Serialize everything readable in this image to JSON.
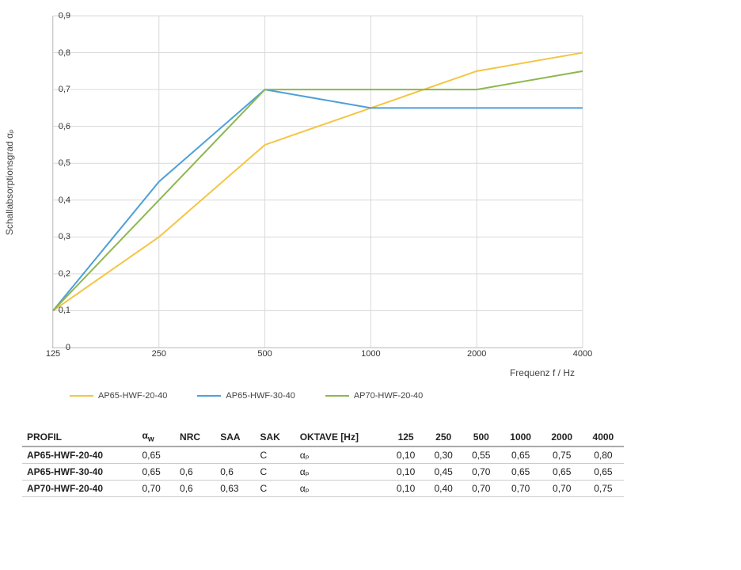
{
  "chart": {
    "type": "line",
    "y_label": "Schallabsorptionsgrad αₚ",
    "x_label": "Frequenz f / Hz",
    "ylim": [
      0,
      0.9
    ],
    "ytick_step": 0.1,
    "y_ticks": [
      "0",
      "0,1",
      "0,2",
      "0,3",
      "0,4",
      "0,5",
      "0,6",
      "0,7",
      "0,8",
      "0,9"
    ],
    "x_categories": [
      "125",
      "250",
      "500",
      "1000",
      "2000",
      "4000"
    ],
    "grid_color": "#d9d9d9",
    "axis_color": "#bbbbbb",
    "background_color": "#ffffff",
    "line_width": 2,
    "label_fontsize": 12,
    "tick_fontsize": 11,
    "series": [
      {
        "name": "AP65-HWF-20-40",
        "color": "#f4c542",
        "values": [
          0.1,
          0.3,
          0.55,
          0.65,
          0.75,
          0.8
        ]
      },
      {
        "name": "AP65-HWF-30-40",
        "color": "#4f9fd8",
        "values": [
          0.1,
          0.45,
          0.7,
          0.65,
          0.65,
          0.65
        ]
      },
      {
        "name": "AP70-HWF-20-40",
        "color": "#8cb84f",
        "values": [
          0.1,
          0.4,
          0.7,
          0.7,
          0.7,
          0.75
        ]
      }
    ]
  },
  "table": {
    "columns": [
      "PROFIL",
      "α_w",
      "NRC",
      "SAA",
      "SAK",
      "OKTAVE [Hz]",
      "125",
      "250",
      "500",
      "1000",
      "2000",
      "4000"
    ],
    "param_label": "αₚ",
    "rows": [
      {
        "profile": "AP65-HWF-20-40",
        "aw": "0,65",
        "nrc": "",
        "saa": "",
        "sak": "C",
        "vals": [
          "0,10",
          "0,30",
          "0,55",
          "0,65",
          "0,75",
          "0,80"
        ]
      },
      {
        "profile": "AP65-HWF-30-40",
        "aw": "0,65",
        "nrc": "0,6",
        "saa": "0,6",
        "sak": "C",
        "vals": [
          "0,10",
          "0,45",
          "0,70",
          "0,65",
          "0,65",
          "0,65"
        ]
      },
      {
        "profile": "AP70-HWF-20-40",
        "aw": "0,70",
        "nrc": "0,6",
        "saa": "0,63",
        "sak": "C",
        "vals": [
          "0,10",
          "0,40",
          "0,70",
          "0,70",
          "0,70",
          "0,75"
        ]
      }
    ]
  }
}
